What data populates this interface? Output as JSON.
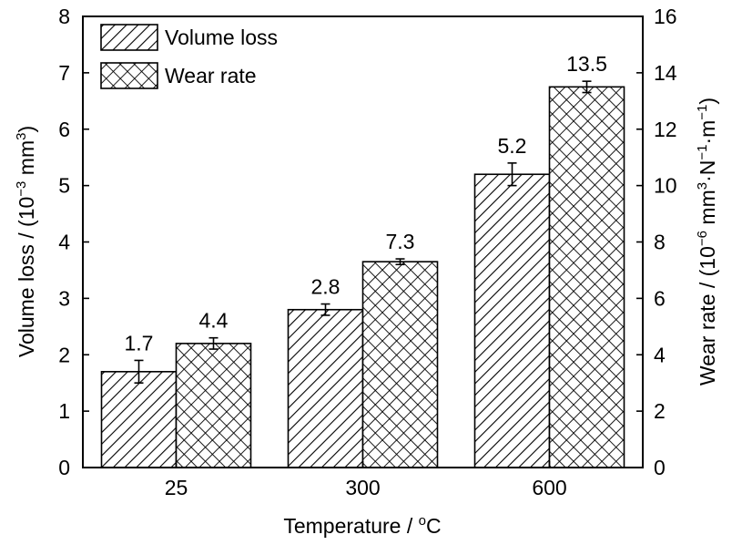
{
  "chart_data": {
    "type": "bar",
    "categories": [
      "25",
      "300",
      "600"
    ],
    "series": [
      {
        "name": "Volume loss",
        "axis": "left",
        "pattern": "diagonal-hatch",
        "values": [
          1.7,
          2.8,
          5.2
        ],
        "errors": [
          0.2,
          0.1,
          0.2
        ],
        "labels": [
          "1.7",
          "2.8",
          "5.2"
        ]
      },
      {
        "name": "Wear rate",
        "axis": "right",
        "pattern": "cross-hatch",
        "values": [
          4.4,
          7.3,
          13.5
        ],
        "errors": [
          0.2,
          0.1,
          0.2
        ],
        "labels": [
          "4.4",
          "7.3",
          "13.5"
        ]
      }
    ],
    "xlabel": {
      "main": "Temperature / ",
      "sup": "o",
      "tail": "C"
    },
    "ylabel_left": {
      "main": "Volume loss / (10",
      "sup": "−3",
      "tail": " mm",
      "sup2": "3",
      "end": ")"
    },
    "ylabel_right": {
      "main": "Wear rate / (10",
      "sup1": "−6",
      "mid": " mm",
      "sup2": "3",
      "mid2": "·N",
      "sup3": "−1",
      "mid3": "·m",
      "sup4": "−1",
      "end": ")"
    },
    "ylim_left": [
      0,
      8
    ],
    "ylim_right": [
      0,
      16
    ],
    "yticks_left": [
      "0",
      "1",
      "2",
      "3",
      "4",
      "5",
      "6",
      "7",
      "8"
    ],
    "yticks_right": [
      "0",
      "2",
      "4",
      "6",
      "8",
      "10",
      "12",
      "14",
      "16"
    ],
    "legend_position": "top-left",
    "grid": false,
    "colors": {
      "bar_fill": "#ffffff",
      "hatch": "#000000",
      "axis": "#000000"
    }
  }
}
